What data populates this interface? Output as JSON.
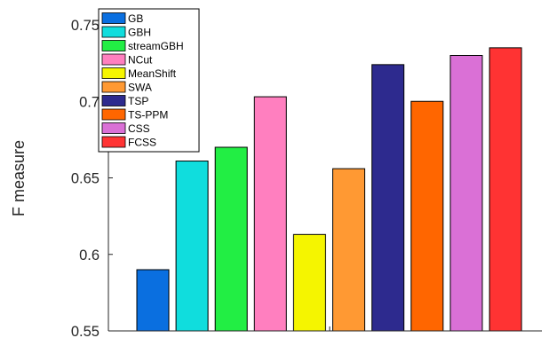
{
  "chart_data": {
    "type": "bar",
    "title": "",
    "xlabel": "",
    "ylabel": "F measure",
    "ylim": [
      0.55,
      0.75
    ],
    "yticks": [
      0.55,
      0.6,
      0.65,
      0.7,
      0.75
    ],
    "ytick_labels": [
      "0.55",
      "0.6",
      "0.65",
      "0.7",
      "0.75"
    ],
    "categories": [
      "GB",
      "GBH",
      "streamGBH",
      "NCut",
      "MeanShift",
      "SWA",
      "TSP",
      "TS-PPM",
      "CSS",
      "FCSS"
    ],
    "values": [
      0.59,
      0.661,
      0.67,
      0.703,
      0.613,
      0.656,
      0.724,
      0.7,
      0.73,
      0.735
    ],
    "colors": [
      "#0A6FE0",
      "#10DDDD",
      "#22EE44",
      "#FF7FBF",
      "#F5F500",
      "#FF9933",
      "#2D2A8E",
      "#FF6600",
      "#DA70D6",
      "#FF3333"
    ],
    "grid": false,
    "legend": {
      "position": "top-left"
    }
  }
}
